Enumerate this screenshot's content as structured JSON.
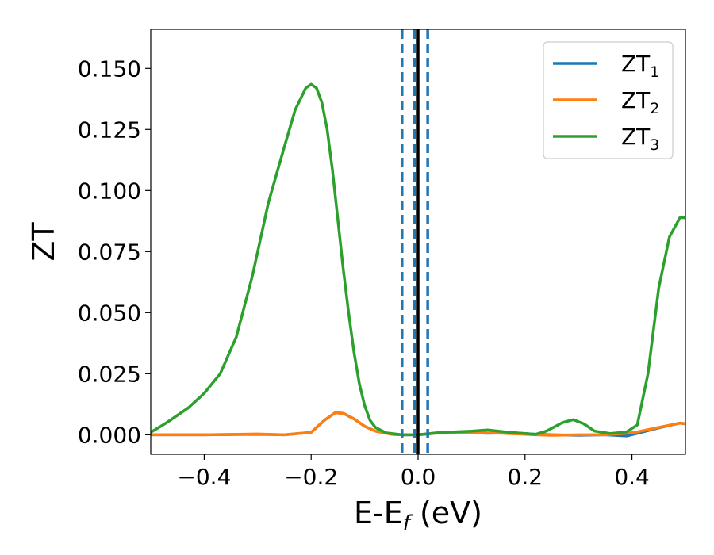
{
  "chart_data": {
    "type": "line",
    "xlabel": "E-E",
    "xlabel_sub": "f",
    "xlabel_unit": " (eV)",
    "ylabel": "ZT",
    "xlim": [
      -0.5,
      0.5
    ],
    "ylim": [
      -0.008,
      0.166
    ],
    "xticks": [
      -0.4,
      -0.2,
      0.0,
      0.2,
      0.4
    ],
    "xtick_labels": [
      "−0.4",
      "−0.2",
      "0.0",
      "0.2",
      "0.4"
    ],
    "yticks": [
      0.0,
      0.025,
      0.05,
      0.075,
      0.1,
      0.125,
      0.15
    ],
    "ytick_labels": [
      "0.000",
      "0.025",
      "0.050",
      "0.075",
      "0.100",
      "0.125",
      "0.150"
    ],
    "grid": false,
    "legend_position": "upper-right",
    "vlines": [
      {
        "x": 0.0,
        "style": "solid",
        "color": "#000000"
      },
      {
        "x": -0.03,
        "style": "dashed",
        "color": "#1f77b4"
      },
      {
        "x": -0.007,
        "style": "dashed",
        "color": "#1f77b4"
      },
      {
        "x": 0.018,
        "style": "dashed",
        "color": "#1f77b4"
      }
    ],
    "series": [
      {
        "name": "ZT",
        "sub": "1",
        "color": "#1f77b4",
        "points": [
          [
            -0.5,
            0.0
          ],
          [
            -0.4,
            0.0
          ],
          [
            -0.3,
            0.0002
          ],
          [
            -0.25,
            0.0
          ],
          [
            -0.2,
            0.001
          ],
          [
            -0.175,
            0.006
          ],
          [
            -0.155,
            0.009
          ],
          [
            -0.14,
            0.0088
          ],
          [
            -0.12,
            0.0065
          ],
          [
            -0.1,
            0.0035
          ],
          [
            -0.08,
            0.0015
          ],
          [
            -0.05,
            0.0002
          ],
          [
            -0.03,
            0.0
          ],
          [
            0.0,
            0.0
          ],
          [
            0.05,
            0.0012
          ],
          [
            0.1,
            0.0008
          ],
          [
            0.13,
            0.0006
          ],
          [
            0.18,
            0.0008
          ],
          [
            0.22,
            0.0002
          ],
          [
            0.25,
            0.0
          ],
          [
            0.3,
            -0.0002
          ],
          [
            0.35,
            0.0
          ],
          [
            0.39,
            -0.0005
          ],
          [
            0.41,
            0.0006
          ],
          [
            0.45,
            0.0028
          ],
          [
            0.49,
            0.0048
          ],
          [
            0.5,
            0.0045
          ]
        ]
      },
      {
        "name": "ZT",
        "sub": "2",
        "color": "#ff7f0e",
        "points": [
          [
            -0.5,
            0.0
          ],
          [
            -0.4,
            0.0
          ],
          [
            -0.3,
            0.0003
          ],
          [
            -0.25,
            0.0
          ],
          [
            -0.2,
            0.001
          ],
          [
            -0.175,
            0.006
          ],
          [
            -0.155,
            0.009
          ],
          [
            -0.14,
            0.0088
          ],
          [
            -0.12,
            0.0065
          ],
          [
            -0.1,
            0.0035
          ],
          [
            -0.08,
            0.0015
          ],
          [
            -0.05,
            0.0002
          ],
          [
            -0.03,
            0.0
          ],
          [
            0.0,
            0.0
          ],
          [
            0.05,
            0.001
          ],
          [
            0.1,
            0.001
          ],
          [
            0.13,
            0.0008
          ],
          [
            0.18,
            0.0004
          ],
          [
            0.22,
            0.0
          ],
          [
            0.25,
            -0.0002
          ],
          [
            0.3,
            0.0
          ],
          [
            0.35,
            0.0
          ],
          [
            0.39,
            0.0006
          ],
          [
            0.41,
            0.0012
          ],
          [
            0.45,
            0.003
          ],
          [
            0.49,
            0.0048
          ],
          [
            0.5,
            0.0045
          ]
        ]
      },
      {
        "name": "ZT",
        "sub": "3",
        "color": "#2ca02c",
        "points": [
          [
            -0.5,
            0.001
          ],
          [
            -0.47,
            0.005
          ],
          [
            -0.43,
            0.011
          ],
          [
            -0.4,
            0.017
          ],
          [
            -0.37,
            0.025
          ],
          [
            -0.34,
            0.04
          ],
          [
            -0.31,
            0.065
          ],
          [
            -0.28,
            0.095
          ],
          [
            -0.25,
            0.118
          ],
          [
            -0.23,
            0.133
          ],
          [
            -0.21,
            0.142
          ],
          [
            -0.2,
            0.1435
          ],
          [
            -0.19,
            0.142
          ],
          [
            -0.18,
            0.136
          ],
          [
            -0.17,
            0.125
          ],
          [
            -0.16,
            0.108
          ],
          [
            -0.15,
            0.088
          ],
          [
            -0.14,
            0.068
          ],
          [
            -0.13,
            0.05
          ],
          [
            -0.12,
            0.034
          ],
          [
            -0.11,
            0.021
          ],
          [
            -0.1,
            0.012
          ],
          [
            -0.09,
            0.006
          ],
          [
            -0.08,
            0.003
          ],
          [
            -0.06,
            0.0008
          ],
          [
            -0.03,
            0.0
          ],
          [
            0.0,
            0.0
          ],
          [
            0.05,
            0.001
          ],
          [
            0.1,
            0.0015
          ],
          [
            0.13,
            0.002
          ],
          [
            0.17,
            0.001
          ],
          [
            0.2,
            0.0005
          ],
          [
            0.22,
            0.0002
          ],
          [
            0.24,
            0.0015
          ],
          [
            0.27,
            0.005
          ],
          [
            0.29,
            0.0062
          ],
          [
            0.31,
            0.0045
          ],
          [
            0.33,
            0.0015
          ],
          [
            0.36,
            0.0005
          ],
          [
            0.39,
            0.0012
          ],
          [
            0.41,
            0.004
          ],
          [
            0.43,
            0.025
          ],
          [
            0.45,
            0.06
          ],
          [
            0.47,
            0.081
          ],
          [
            0.49,
            0.089
          ],
          [
            0.5,
            0.0888
          ]
        ]
      }
    ]
  }
}
